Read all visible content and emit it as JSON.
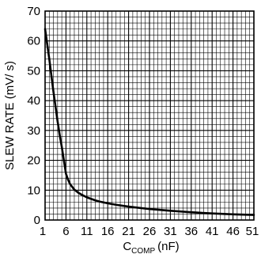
{
  "chart_data": {
    "type": "line",
    "title": "",
    "xlabel": {
      "base": "C",
      "subscript": "COMP",
      "unit": "(nF)"
    },
    "ylabel": "SLEW RATE (mV/ s)",
    "xlim": [
      1,
      51
    ],
    "ylim": [
      0,
      70
    ],
    "x_ticks": [
      1,
      6,
      11,
      16,
      21,
      26,
      31,
      36,
      41,
      46,
      51
    ],
    "y_ticks": [
      0,
      10,
      20,
      30,
      40,
      50,
      60,
      70
    ],
    "x_minor_step": 1,
    "y_minor_step": 2,
    "grid": true,
    "legend": "none",
    "series": [
      {
        "color": "#000000",
        "x": [
          1,
          1.5,
          2,
          2.5,
          3,
          3.5,
          4,
          4.5,
          5,
          5.5,
          6,
          6.5,
          7,
          8,
          9,
          10,
          11,
          12,
          13,
          14,
          16,
          18,
          21,
          24,
          26,
          31,
          36,
          41,
          46,
          51
        ],
        "y": [
          64,
          59,
          54,
          48.5,
          43,
          38,
          33,
          28.5,
          24.5,
          20,
          15.5,
          13.5,
          12,
          10.2,
          9.1,
          8.3,
          7.6,
          7.1,
          6.6,
          6.2,
          5.6,
          5.1,
          4.5,
          4,
          3.7,
          3.1,
          2.6,
          2.2,
          1.9,
          1.7
        ]
      }
    ]
  }
}
